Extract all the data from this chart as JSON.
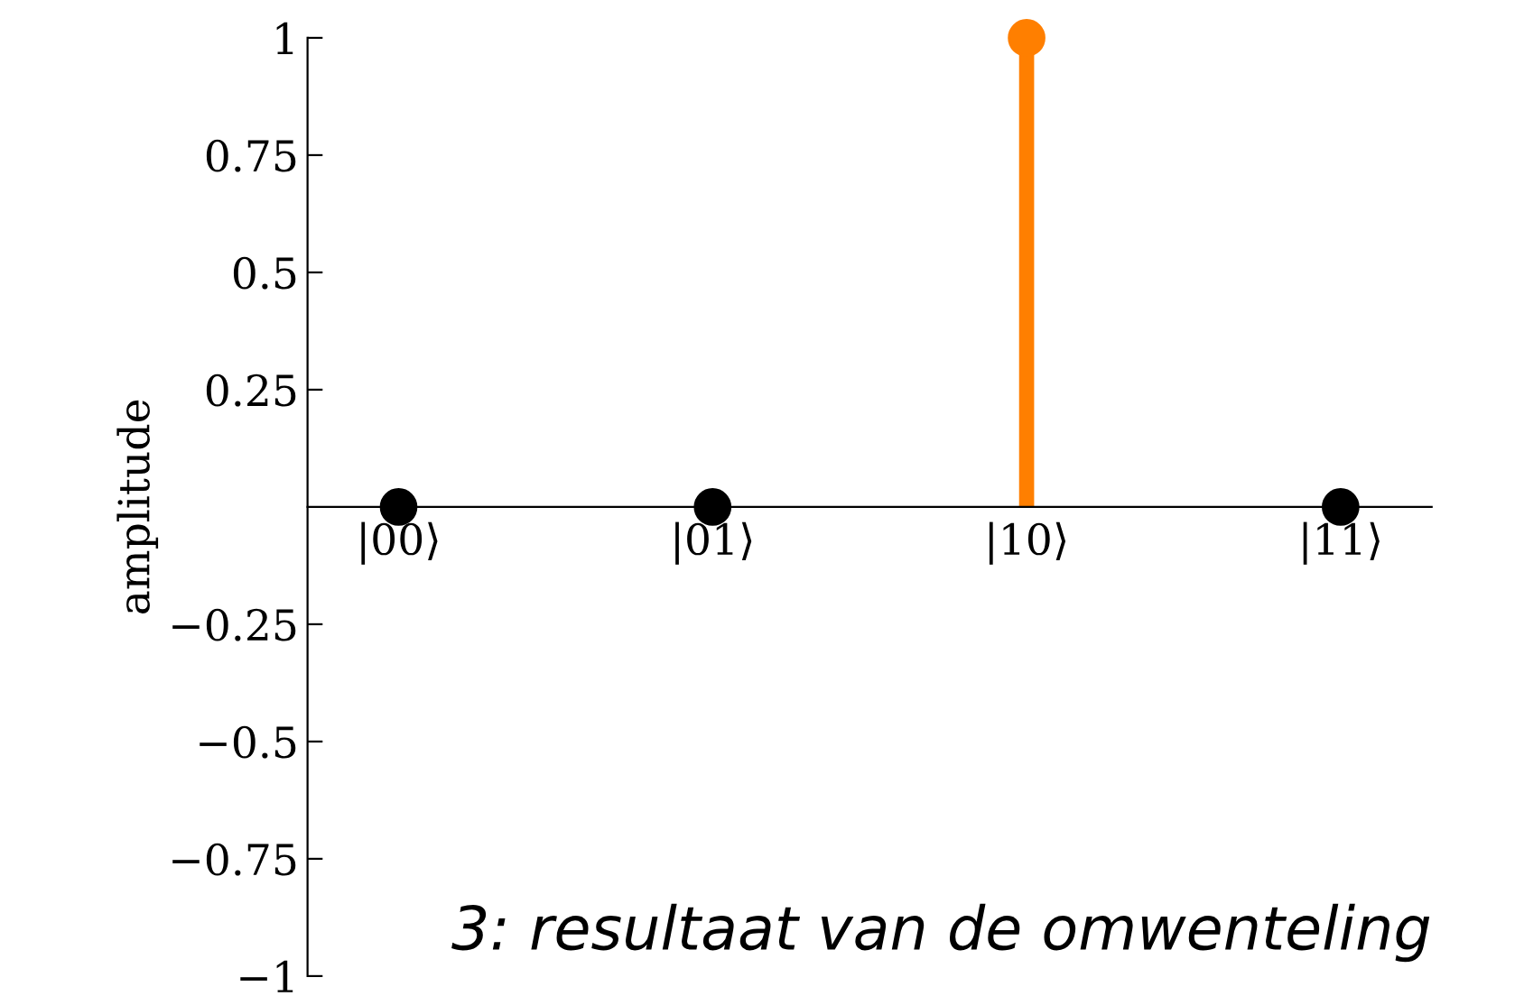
{
  "chart_data": {
    "type": "lollipop",
    "ylabel": "amplitude",
    "categories": [
      "|00⟩",
      "|01⟩",
      "|10⟩",
      "|11⟩"
    ],
    "values": [
      0,
      0,
      1,
      0
    ],
    "colors": [
      "#000000",
      "#000000",
      "#ff7f00",
      "#000000"
    ],
    "ylim": [
      -1,
      1
    ],
    "yticks": [
      {
        "value": -1,
        "label": "−1"
      },
      {
        "value": -0.75,
        "label": "−0.75"
      },
      {
        "value": -0.5,
        "label": "−0.5"
      },
      {
        "value": -0.25,
        "label": "−0.25"
      },
      0.25,
      0.5,
      0.75,
      1
    ],
    "marker": "circle",
    "grid": false,
    "annotations": [
      "3: resultaat van de omwenteling"
    ]
  }
}
